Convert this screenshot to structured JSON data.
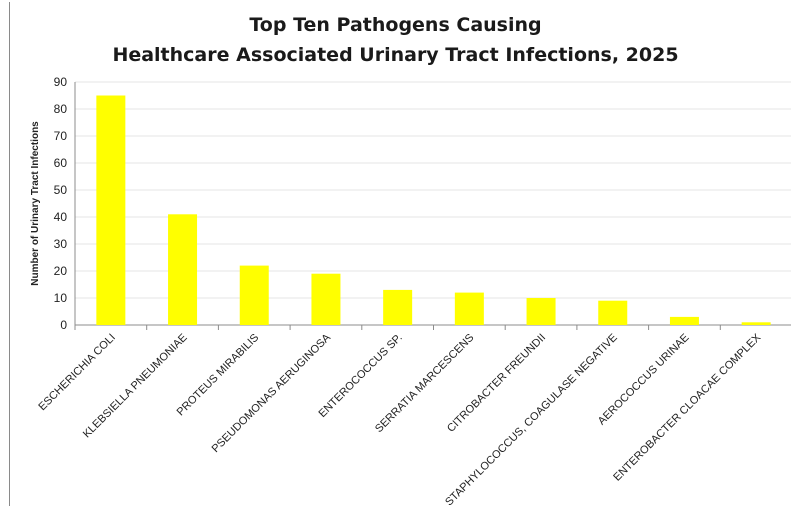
{
  "chart_data": {
    "type": "bar",
    "title": [
      "Top Ten Pathogens Causing",
      "Healthcare Associated Urinary Tract Infections, 2025"
    ],
    "xlabel": "",
    "ylabel": "Number of Urinary Tract Infections",
    "ylim": [
      0,
      90
    ],
    "yticks": [
      0,
      10,
      20,
      30,
      40,
      50,
      60,
      70,
      80,
      90
    ],
    "grid": true,
    "legend": "none",
    "bar_color": "#ffff00",
    "categories": [
      "ESCHERICHIA COLI",
      "KLEBSIELLA PNEUMONIAE",
      "PROTEUS MIRABILIS",
      "PSEUDOMONAS AERUGINOSA",
      "ENTEROCOCCUS SP.",
      "SERRATIA MARCESCENS",
      "CITROBACTER FREUNDII",
      "STAPHYLOCOCCUS, COAGULASE NEGATIVE",
      "AEROCOCCUS URINAE",
      "ENTEROBACTER CLOACAE COMPLEX"
    ],
    "values": [
      85,
      41,
      22,
      19,
      13,
      12,
      10,
      9,
      3,
      1
    ]
  }
}
